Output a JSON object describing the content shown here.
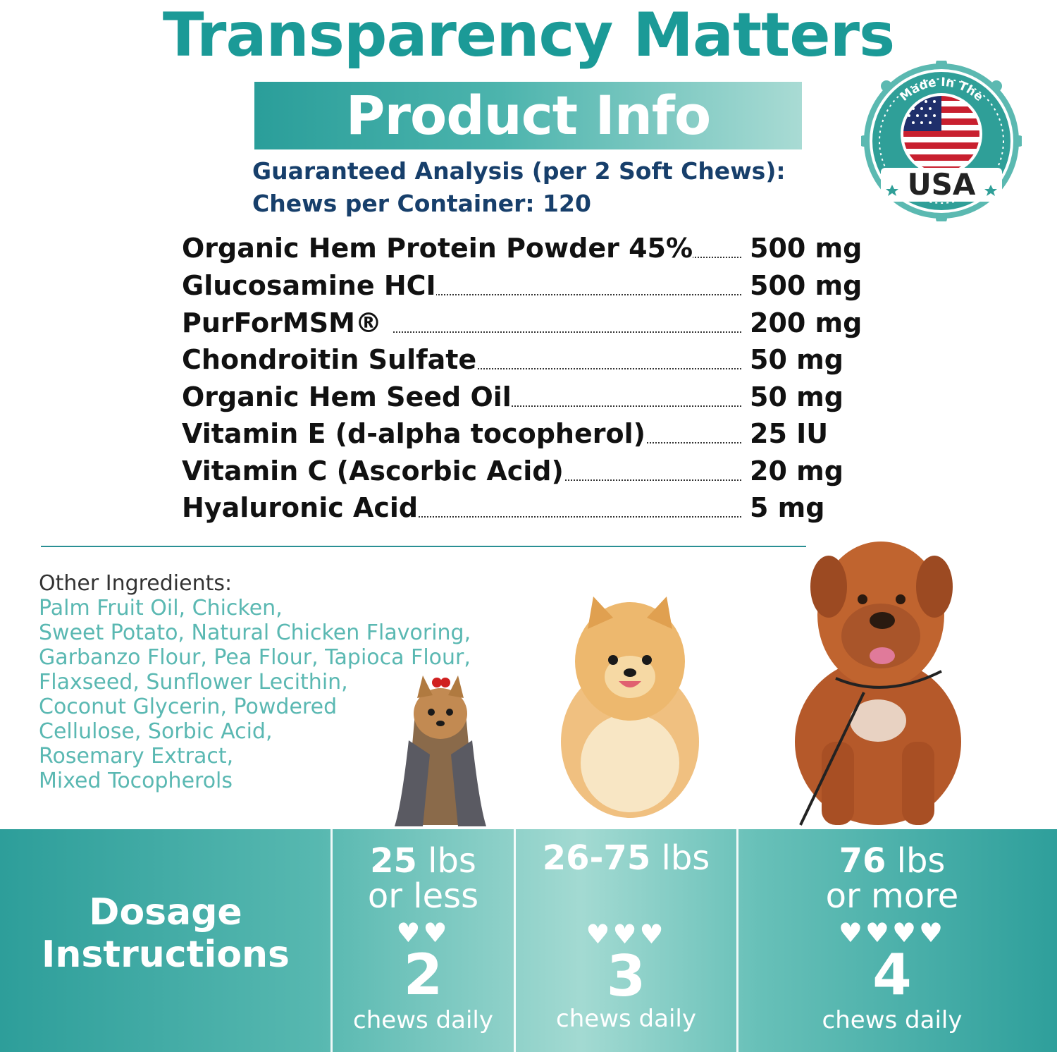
{
  "header": {
    "title": "Transparency Matters",
    "band_label": "Product Info",
    "analysis_line": "Guaranteed Analysis (per 2 Soft Chews):",
    "container_line": "Chews per Container: 120"
  },
  "badge": {
    "top_text": "Made In The",
    "bottom_text": "USA"
  },
  "ingredients": [
    {
      "name": "Organic Hem   Protein Powder 45%",
      "amount": "500 mg"
    },
    {
      "name": "Glucosamine HCI",
      "amount": "500 mg"
    },
    {
      "name": "PurForMSM®",
      "amount": "200 mg"
    },
    {
      "name": "Chondroitin Sulfate",
      "amount": "50 mg"
    },
    {
      "name": "Organic Hem    Seed Oil",
      "amount": "50 mg"
    },
    {
      "name": "Vitamin E (d-alpha tocopherol)",
      "amount": "25 IU"
    },
    {
      "name": "Vitamin C (Ascorbic Acid)",
      "amount": "20 mg"
    },
    {
      "name": "Hyaluronic Acid",
      "amount": "5 mg"
    }
  ],
  "other_ingredients": {
    "label": "Other Ingredients:",
    "lines": [
      "Palm Fruit Oil, Chicken,",
      "Sweet Potato, Natural Chicken Flavoring,",
      "Garbanzo Flour, Pea Flour, Tapioca Flour,",
      "Flaxseed, Sunflower Lecithin,",
      "Coconut Glycerin, Powdered",
      "Cellulose,  Sorbic Acid,",
      "Rosemary Extract,",
      "Mixed Tocopherols"
    ]
  },
  "dosage": {
    "title_line1": "Dosage",
    "title_line2": "Instructions",
    "columns": [
      {
        "weight_num": "25",
        "weight_unit": " lbs",
        "weight_line2": "or less",
        "hearts": "♥♥",
        "count": "2",
        "daily": "chews daily"
      },
      {
        "weight_num": "26-75",
        "weight_unit": " lbs",
        "weight_line2": "",
        "hearts": "♥♥♥",
        "count": "3",
        "daily": "chews daily"
      },
      {
        "weight_num": "76",
        "weight_unit": " lbs",
        "weight_line2": "or more",
        "hearts": "♥♥♥♥",
        "count": "4",
        "daily": "chews daily"
      }
    ]
  },
  "colors": {
    "teal": "#1b9a97",
    "navy": "#173f6b"
  }
}
